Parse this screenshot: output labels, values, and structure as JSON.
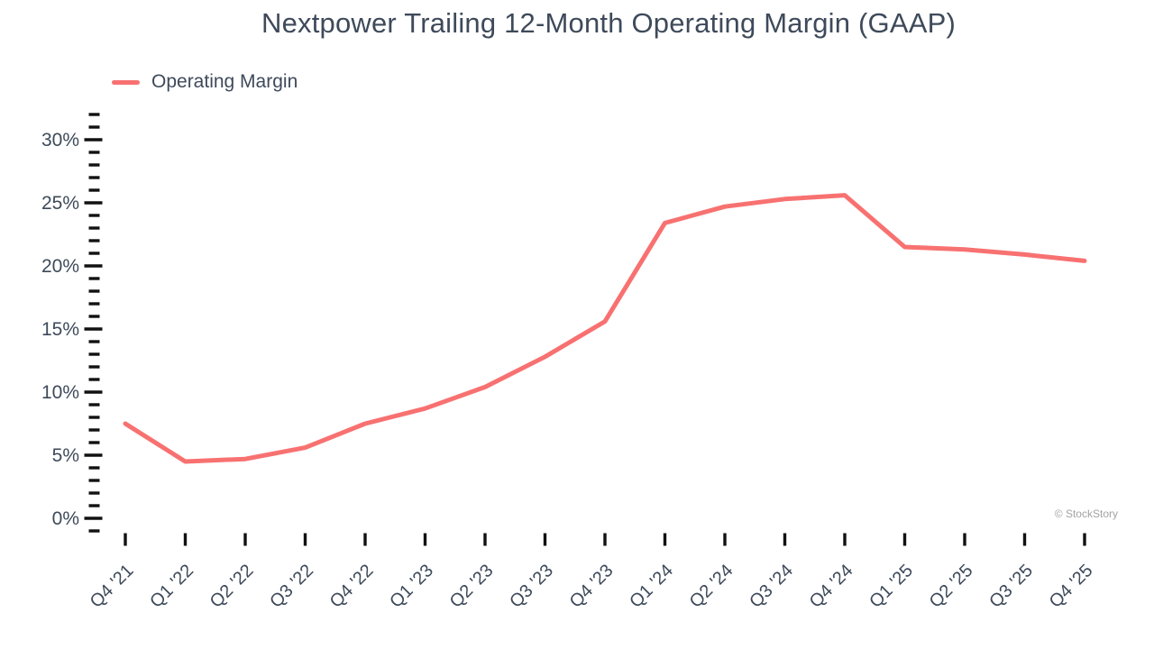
{
  "title": "Nextpower Trailing 12-Month Operating Margin (GAAP)",
  "legend": {
    "label": "Operating Margin",
    "color": "#F87171"
  },
  "watermark": "© StockStory",
  "colors": {
    "text": "#3E4A5A",
    "tick": "#111111",
    "line": "#F87171",
    "watermark": "#A3A3A3"
  },
  "chart_data": {
    "type": "line",
    "title": "Nextpower Trailing 12-Month Operating Margin (GAAP)",
    "xlabel": "",
    "ylabel": "",
    "categories": [
      "Q4 '21",
      "Q1 '22",
      "Q2 '22",
      "Q3 '22",
      "Q4 '22",
      "Q1 '23",
      "Q2 '23",
      "Q3 '23",
      "Q4 '23",
      "Q1 '24",
      "Q2 '24",
      "Q3 '24",
      "Q4 '24",
      "Q1 '25",
      "Q2 '25",
      "Q3 '25",
      "Q4 '25"
    ],
    "series": [
      {
        "name": "Operating Margin",
        "color": "#F87171",
        "unit": "%",
        "values": [
          7.5,
          4.5,
          4.7,
          5.6,
          7.5,
          8.7,
          10.4,
          12.8,
          15.6,
          23.4,
          24.7,
          25.3,
          25.6,
          21.5,
          21.3,
          20.9,
          20.4
        ]
      }
    ],
    "ylim": [
      -1,
      32
    ],
    "y_major_ticks": [
      0,
      5,
      10,
      15,
      20,
      25,
      30
    ],
    "y_tick_labels": [
      "0%",
      "5%",
      "10%",
      "15%",
      "20%",
      "25%",
      "30%"
    ],
    "y_minor_step": 1,
    "grid": false,
    "legend_position": "top-left",
    "x_tick_label_rotation": -45
  }
}
